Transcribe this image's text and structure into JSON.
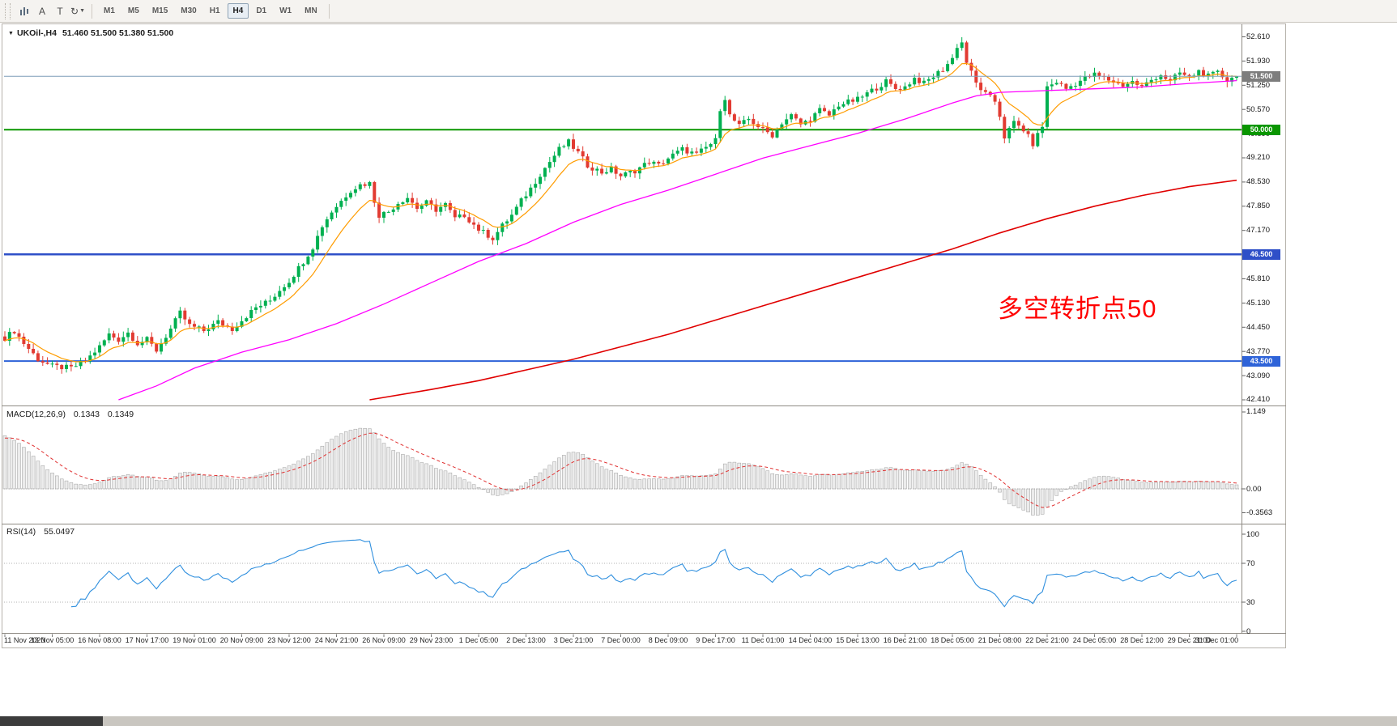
{
  "toolbar": {
    "buttons": {
      "a_label": "A",
      "t_label": "T"
    },
    "timeframes": [
      "M1",
      "M5",
      "M15",
      "M30",
      "H1",
      "H4",
      "D1",
      "W1",
      "MN"
    ],
    "active_timeframe": "H4"
  },
  "chart": {
    "symbol_title": "UKOil-,H4",
    "ohlc_text": "51.460 51.500 51.380 51.500",
    "annotation": {
      "text": "多空转折点50",
      "color": "#ff0000"
    },
    "price_ticks": [
      "52.610",
      "51.930",
      "51.250",
      "50.570",
      "49.890",
      "49.210",
      "48.530",
      "47.850",
      "47.170",
      "45.810",
      "45.130",
      "44.450",
      "43.770",
      "43.090",
      "42.410"
    ],
    "levels": [
      {
        "value": 50.0,
        "color": "#0a9600",
        "width": 2
      },
      {
        "value": 46.5,
        "color": "#2e4fc8",
        "width": 2.5
      },
      {
        "value": 43.5,
        "color": "#2e63d8",
        "width": 2
      }
    ],
    "badges": [
      {
        "label": "51.500",
        "value": 51.5,
        "color": "#7d7d7d",
        "name": "current-price-badge"
      },
      {
        "label": "50.000",
        "value": 50.0,
        "color": "#0a9600",
        "name": "level-badge-50000"
      },
      {
        "label": "46.500",
        "value": 46.5,
        "color": "#2e4fc8",
        "name": "level-badge-46500"
      },
      {
        "label": "43.500",
        "value": 43.5,
        "color": "#2e63d8",
        "name": "level-badge-43500"
      }
    ],
    "current_price": {
      "value": 51.5,
      "line_color": "#7f9db9"
    }
  },
  "chart_data": {
    "type": "candlestick",
    "symbol": "UKOil-",
    "timeframe": "H4",
    "num_candles": 261,
    "label_every": 10,
    "last_candle": {
      "open": 51.46,
      "high": 51.5,
      "low": 51.38,
      "close": 51.5
    },
    "close_waypoints": [
      [
        0,
        44.15
      ],
      [
        2,
        44.35
      ],
      [
        4,
        44.0
      ],
      [
        7,
        43.55
      ],
      [
        10,
        43.35
      ],
      [
        14,
        43.3
      ],
      [
        17,
        43.5
      ],
      [
        20,
        43.9
      ],
      [
        22,
        44.25
      ],
      [
        24,
        44.1
      ],
      [
        26,
        44.3
      ],
      [
        28,
        44.0
      ],
      [
        30,
        44.1
      ],
      [
        32,
        43.8
      ],
      [
        35,
        44.4
      ],
      [
        37,
        44.85
      ],
      [
        39,
        44.5
      ],
      [
        42,
        44.35
      ],
      [
        45,
        44.6
      ],
      [
        48,
        44.4
      ],
      [
        50,
        44.65
      ],
      [
        53,
        45.0
      ],
      [
        56,
        45.2
      ],
      [
        58,
        45.5
      ],
      [
        60,
        45.75
      ],
      [
        63,
        46.3
      ],
      [
        65,
        46.7
      ],
      [
        67,
        47.3
      ],
      [
        69,
        47.7
      ],
      [
        71,
        48.0
      ],
      [
        73,
        48.3
      ],
      [
        75,
        48.45
      ],
      [
        77,
        48.5
      ],
      [
        78,
        48.0
      ],
      [
        79,
        47.6
      ],
      [
        81,
        47.7
      ],
      [
        83,
        47.95
      ],
      [
        85,
        48.1
      ],
      [
        87,
        47.8
      ],
      [
        89,
        47.95
      ],
      [
        91,
        47.75
      ],
      [
        93,
        47.9
      ],
      [
        95,
        47.5
      ],
      [
        97,
        47.6
      ],
      [
        100,
        47.2
      ],
      [
        103,
        46.95
      ],
      [
        105,
        47.3
      ],
      [
        107,
        47.6
      ],
      [
        109,
        48.0
      ],
      [
        111,
        48.35
      ],
      [
        113,
        48.75
      ],
      [
        115,
        49.1
      ],
      [
        117,
        49.45
      ],
      [
        119,
        49.65
      ],
      [
        121,
        49.35
      ],
      [
        123,
        49.0
      ],
      [
        126,
        48.8
      ],
      [
        128,
        48.9
      ],
      [
        130,
        48.7
      ],
      [
        133,
        48.85
      ],
      [
        136,
        49.1
      ],
      [
        138,
        49.0
      ],
      [
        140,
        49.2
      ],
      [
        143,
        49.45
      ],
      [
        146,
        49.3
      ],
      [
        148,
        49.5
      ],
      [
        150,
        49.7
      ],
      [
        151,
        50.6
      ],
      [
        152,
        50.9
      ],
      [
        153,
        50.4
      ],
      [
        155,
        50.1
      ],
      [
        157,
        50.3
      ],
      [
        160,
        50.0
      ],
      [
        162,
        49.85
      ],
      [
        164,
        50.2
      ],
      [
        166,
        50.4
      ],
      [
        168,
        50.15
      ],
      [
        170,
        50.3
      ],
      [
        172,
        50.55
      ],
      [
        174,
        50.4
      ],
      [
        176,
        50.7
      ],
      [
        180,
        50.85
      ],
      [
        183,
        51.1
      ],
      [
        186,
        51.35
      ],
      [
        188,
        51.15
      ],
      [
        190,
        51.2
      ],
      [
        192,
        51.45
      ],
      [
        194,
        51.3
      ],
      [
        196,
        51.5
      ],
      [
        198,
        51.7
      ],
      [
        200,
        52.0
      ],
      [
        201,
        52.35
      ],
      [
        202,
        52.45
      ],
      [
        203,
        51.9
      ],
      [
        205,
        51.3
      ],
      [
        207,
        51.0
      ],
      [
        209,
        50.8
      ],
      [
        210,
        50.4
      ],
      [
        211,
        49.8
      ],
      [
        213,
        50.2
      ],
      [
        215,
        50.0
      ],
      [
        217,
        49.6
      ],
      [
        219,
        50.1
      ],
      [
        220,
        51.2
      ],
      [
        222,
        51.35
      ],
      [
        224,
        51.15
      ],
      [
        226,
        51.3
      ],
      [
        228,
        51.45
      ],
      [
        230,
        51.55
      ],
      [
        233,
        51.4
      ],
      [
        236,
        51.25
      ],
      [
        238,
        51.35
      ],
      [
        240,
        51.2
      ],
      [
        242,
        51.4
      ],
      [
        244,
        51.55
      ],
      [
        246,
        51.35
      ],
      [
        248,
        51.6
      ],
      [
        250,
        51.45
      ],
      [
        252,
        51.65
      ],
      [
        254,
        51.5
      ],
      [
        256,
        51.6
      ],
      [
        258,
        51.4
      ],
      [
        260,
        51.5
      ]
    ],
    "ma_fast_period": 10,
    "ma_mid_waypoints": [
      [
        24,
        42.41
      ],
      [
        32,
        42.8
      ],
      [
        40,
        43.3
      ],
      [
        50,
        43.75
      ],
      [
        60,
        44.1
      ],
      [
        70,
        44.55
      ],
      [
        80,
        45.1
      ],
      [
        90,
        45.7
      ],
      [
        100,
        46.3
      ],
      [
        105,
        46.55
      ],
      [
        110,
        46.8
      ],
      [
        120,
        47.4
      ],
      [
        130,
        47.9
      ],
      [
        140,
        48.3
      ],
      [
        150,
        48.75
      ],
      [
        160,
        49.2
      ],
      [
        170,
        49.55
      ],
      [
        180,
        49.9
      ],
      [
        190,
        50.3
      ],
      [
        200,
        50.75
      ],
      [
        205,
        50.95
      ],
      [
        210,
        51.05
      ],
      [
        220,
        51.1
      ],
      [
        230,
        51.15
      ],
      [
        240,
        51.2
      ],
      [
        250,
        51.3
      ],
      [
        260,
        51.38
      ]
    ],
    "ma_slow_waypoints": [
      [
        77,
        42.41
      ],
      [
        90,
        42.7
      ],
      [
        100,
        42.95
      ],
      [
        110,
        43.25
      ],
      [
        120,
        43.55
      ],
      [
        130,
        43.9
      ],
      [
        140,
        44.25
      ],
      [
        150,
        44.65
      ],
      [
        160,
        45.05
      ],
      [
        170,
        45.45
      ],
      [
        180,
        45.85
      ],
      [
        190,
        46.25
      ],
      [
        200,
        46.65
      ],
      [
        210,
        47.1
      ],
      [
        220,
        47.5
      ],
      [
        230,
        47.85
      ],
      [
        240,
        48.15
      ],
      [
        250,
        48.4
      ],
      [
        260,
        48.58
      ]
    ],
    "colors": {
      "up": "#00b050",
      "down": "#e23b32",
      "ma_fast": "#ff9c00",
      "ma_mid": "#ff00ff",
      "ma_slow": "#e00000",
      "macd_hist_fill": "#ececec",
      "macd_hist_stroke": "#9e9e9e",
      "macd_signal": "#e03030",
      "rsi": "#2f8fde"
    },
    "time_labels": [
      "11 Nov 2020",
      "13 Nov 05:00",
      "16 Nov 08:00",
      "17 Nov 17:00",
      "19 Nov 01:00",
      "20 Nov 09:00",
      "23 Nov 12:00",
      "24 Nov 21:00",
      "26 Nov 09:00",
      "29 Nov 23:00",
      "1 Dec 05:00",
      "2 Dec 13:00",
      "3 Dec 21:00",
      "7 Dec 00:00",
      "8 Dec 09:00",
      "9 Dec 17:00",
      "11 Dec 01:00",
      "14 Dec 04:00",
      "15 Dec 13:00",
      "16 Dec 21:00",
      "18 Dec 05:00",
      "21 Dec 08:00",
      "22 Dec 21:00",
      "24 Dec 05:00",
      "28 Dec 12:00",
      "29 Dec 21:00",
      "31 Dec 01:00"
    ],
    "macd": {
      "label": "MACD(12,26,9)",
      "values": [
        0.1343,
        0.1349
      ],
      "fast": 12,
      "slow": 26,
      "signal": 9,
      "seed_fast": 0.1,
      "seed_slow": 0.95,
      "seed_signal": 0.75,
      "ticks": [
        "1.149",
        "0.00",
        "-0.3563"
      ]
    },
    "rsi": {
      "label": "RSI(14)",
      "period": 14,
      "value": 55.0497,
      "ticks": [
        "100",
        "70",
        "30",
        "0"
      ],
      "levels": [
        70,
        30
      ]
    }
  }
}
